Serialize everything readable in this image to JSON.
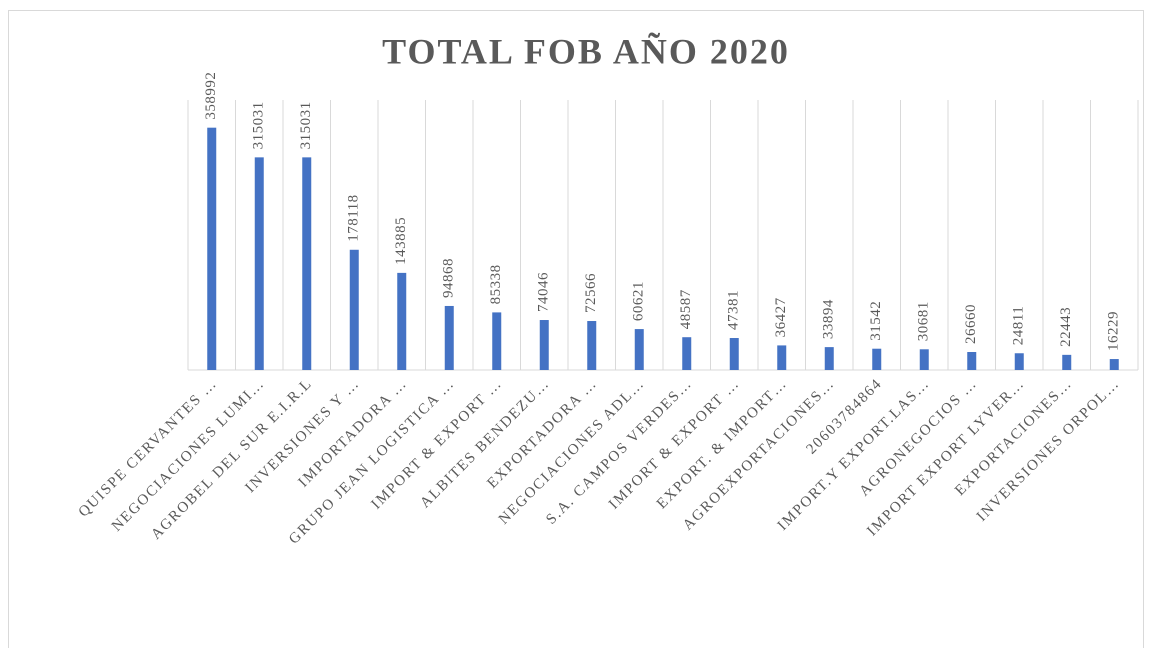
{
  "chart_data": {
    "type": "bar",
    "title": "TOTAL FOB AÑO 2020",
    "categories": [
      "QUISPE CERVANTES …",
      "NEGOCIACIONES LUMI…",
      "AGROBEL DEL SUR E.I.R.L",
      "INVERSIONES Y …",
      "IMPORTADORA …",
      "GRUPO JEAN LOGISTICA …",
      "IMPORT & EXPORT …",
      "ALBITES BENDEZU…",
      "EXPORTADORA …",
      "NEGOCIACIONES ADL…",
      "S.A. CAMPOS VERDES…",
      "IMPORT & EXPORT …",
      "EXPORT. & IMPORT…",
      "AGROEXPORTACIONES…",
      "20603784864",
      "IMPORT.Y EXPORT.LAS…",
      "AGRONEGOCIOS …",
      "IMPORT EXPORT LYVER…",
      "EXPORTACIONES…",
      "INVERSIONES ORPOL…"
    ],
    "values": [
      358992,
      315031,
      315031,
      178118,
      143885,
      94868,
      85338,
      74046,
      72566,
      60621,
      48587,
      47381,
      36427,
      33894,
      31542,
      30681,
      26660,
      24811,
      22443,
      16229
    ],
    "color": "#4472c4",
    "ylim": [
      0,
      400000
    ],
    "grid": true
  }
}
